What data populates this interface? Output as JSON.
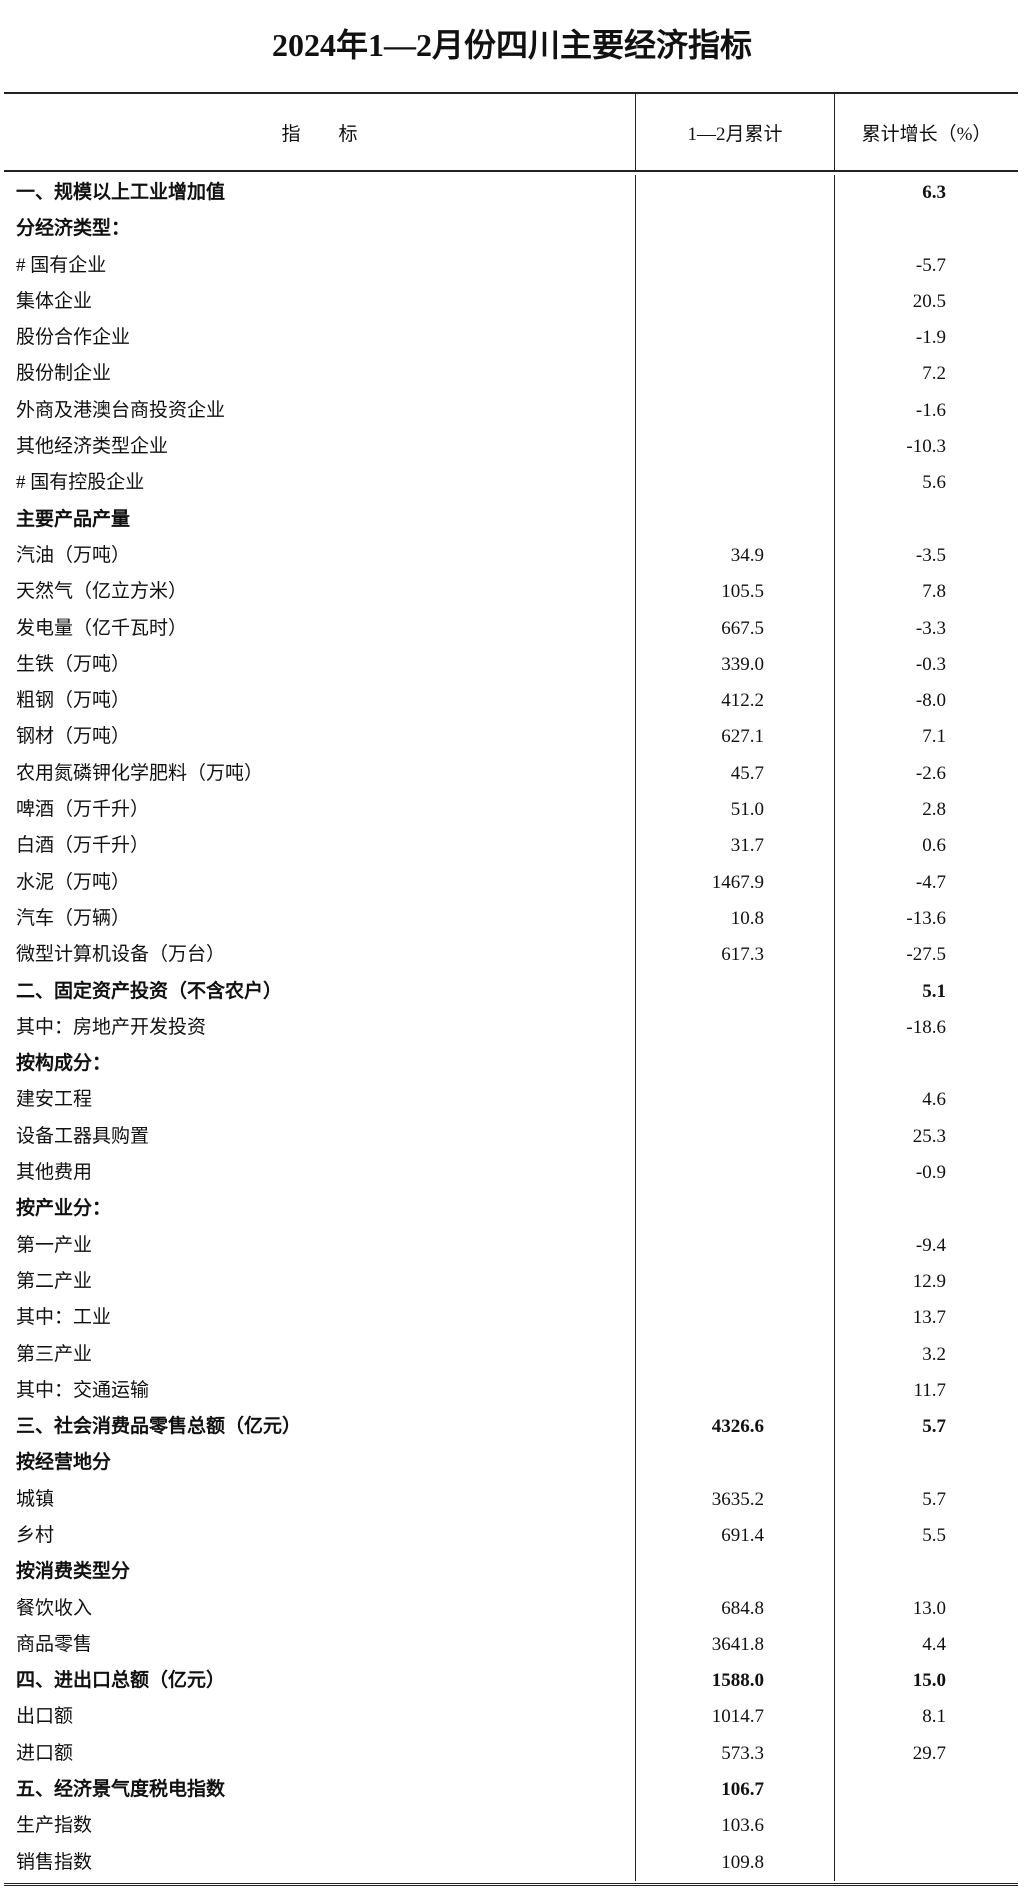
{
  "title": "2024年1—2月份四川主要经济指标",
  "headers": {
    "indicator": "指　　标",
    "cumulative": "1—2月累计",
    "growth": "累计增长（%）"
  },
  "rows": [
    {
      "label": "一、规模以上工业增加值",
      "value": "",
      "growth": "6.3",
      "bold": true
    },
    {
      "label": "分经济类型：",
      "value": "",
      "growth": "",
      "bold": true
    },
    {
      "label": "# 国有企业",
      "value": "",
      "growth": "-5.7"
    },
    {
      "label": "集体企业",
      "value": "",
      "growth": "20.5"
    },
    {
      "label": "股份合作企业",
      "value": "",
      "growth": "-1.9"
    },
    {
      "label": "股份制企业",
      "value": "",
      "growth": "7.2"
    },
    {
      "label": "外商及港澳台商投资企业",
      "value": "",
      "growth": "-1.6"
    },
    {
      "label": "其他经济类型企业",
      "value": "",
      "growth": "-10.3"
    },
    {
      "label": "# 国有控股企业",
      "value": "",
      "growth": "5.6"
    },
    {
      "label": "主要产品产量",
      "value": "",
      "growth": "",
      "bold": true
    },
    {
      "label": "汽油（万吨）",
      "value": "34.9",
      "growth": "-3.5"
    },
    {
      "label": "天然气（亿立方米）",
      "value": "105.5",
      "growth": "7.8"
    },
    {
      "label": "发电量（亿千瓦时）",
      "value": "667.5",
      "growth": "-3.3"
    },
    {
      "label": "生铁（万吨）",
      "value": "339.0",
      "growth": "-0.3"
    },
    {
      "label": "粗钢（万吨）",
      "value": "412.2",
      "growth": "-8.0"
    },
    {
      "label": "钢材（万吨）",
      "value": "627.1",
      "growth": "7.1"
    },
    {
      "label": "农用氮磷钾化学肥料（万吨）",
      "value": "45.7",
      "growth": "-2.6"
    },
    {
      "label": "啤酒（万千升）",
      "value": "51.0",
      "growth": "2.8"
    },
    {
      "label": "白酒（万千升）",
      "value": "31.7",
      "growth": "0.6"
    },
    {
      "label": "水泥（万吨）",
      "value": "1467.9",
      "growth": "-4.7"
    },
    {
      "label": "汽车（万辆）",
      "value": "10.8",
      "growth": "-13.6"
    },
    {
      "label": "微型计算机设备（万台）",
      "value": "617.3",
      "growth": "-27.5"
    },
    {
      "label": "二、固定资产投资（不含农户）",
      "value": "",
      "growth": "5.1",
      "bold": true
    },
    {
      "label": "其中：房地产开发投资",
      "value": "",
      "growth": "-18.6"
    },
    {
      "label": "按构成分：",
      "value": "",
      "growth": "",
      "bold": true
    },
    {
      "label": "建安工程",
      "value": "",
      "growth": "4.6"
    },
    {
      "label": "设备工器具购置",
      "value": "",
      "growth": "25.3"
    },
    {
      "label": "其他费用",
      "value": "",
      "growth": "-0.9"
    },
    {
      "label": "按产业分：",
      "value": "",
      "growth": "",
      "bold": true
    },
    {
      "label": "第一产业",
      "value": "",
      "growth": "-9.4"
    },
    {
      "label": "第二产业",
      "value": "",
      "growth": "12.9"
    },
    {
      "label": "其中：工业",
      "value": "",
      "growth": "13.7"
    },
    {
      "label": "第三产业",
      "value": "",
      "growth": "3.2"
    },
    {
      "label": "其中：交通运输",
      "value": "",
      "growth": "11.7"
    },
    {
      "label": "三、社会消费品零售总额（亿元）",
      "value": "4326.6",
      "growth": "5.7",
      "bold": true
    },
    {
      "label": "按经营地分",
      "value": "",
      "growth": "",
      "bold": true
    },
    {
      "label": "城镇",
      "value": "3635.2",
      "growth": "5.7"
    },
    {
      "label": "乡村",
      "value": "691.4",
      "growth": "5.5"
    },
    {
      "label": "按消费类型分",
      "value": "",
      "growth": "",
      "bold": true
    },
    {
      "label": "餐饮收入",
      "value": "684.8",
      "growth": "13.0"
    },
    {
      "label": "商品零售",
      "value": "3641.8",
      "growth": "4.4"
    },
    {
      "label": "四、进出口总额（亿元）",
      "value": "1588.0",
      "growth": "15.0",
      "bold": true
    },
    {
      "label": "出口额",
      "value": "1014.7",
      "growth": "8.1"
    },
    {
      "label": "进口额",
      "value": "573.3",
      "growth": "29.7"
    },
    {
      "label": "五、经济景气度税电指数",
      "value": "106.7",
      "growth": "",
      "bold": true
    },
    {
      "label": "生产指数",
      "value": "103.6",
      "growth": ""
    },
    {
      "label": "销售指数",
      "value": "109.8",
      "growth": ""
    }
  ]
}
